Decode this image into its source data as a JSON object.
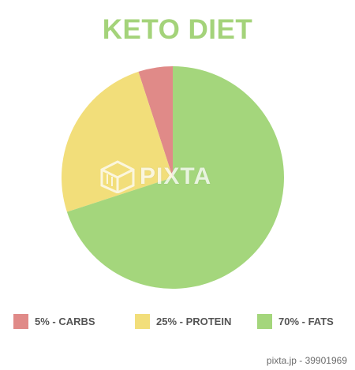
{
  "title": "KETO DIET",
  "colors": {
    "title": "#a4d37a",
    "carbs": "#e08a88",
    "protein": "#f2de7a",
    "fats": "#a4d67c",
    "legend_text": "#555555"
  },
  "chart_data": {
    "type": "pie",
    "title": "KETO DIET",
    "start_angle_deg": 0,
    "direction": "counterclockwise",
    "slices": [
      {
        "label": "5% - CARBS",
        "category": "CARBS",
        "value": 5,
        "color": "#e08a88"
      },
      {
        "label": "25% - PROTEIN",
        "category": "PROTEIN",
        "value": 25,
        "color": "#f2de7a"
      },
      {
        "label": "70% - FATS",
        "category": "FATS",
        "value": 70,
        "color": "#a4d67c"
      }
    ],
    "legend": "bottom"
  },
  "watermark": {
    "text": "PIXTA",
    "logo_icon": "pixta-cube-icon"
  },
  "footer": {
    "text": "pixta.jp - 39901969"
  }
}
